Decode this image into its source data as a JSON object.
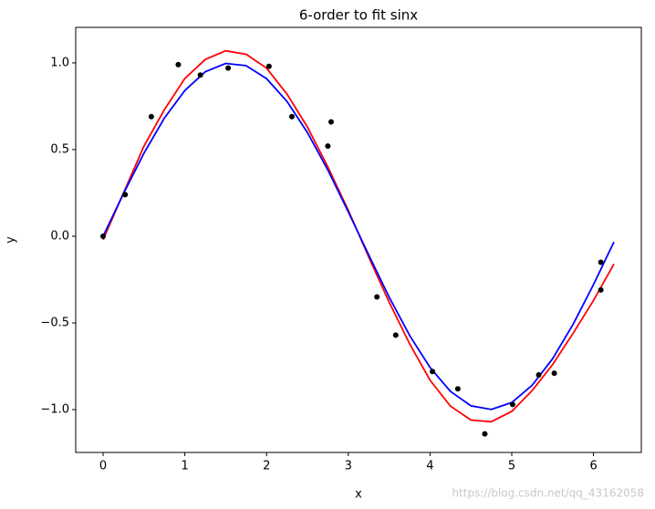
{
  "chart_data": {
    "type": "line",
    "title": "6-order to fit sinx",
    "xlabel": "x",
    "ylabel": "y",
    "xlim": [
      -0.335,
      6.585
    ],
    "ylim": [
      -1.247,
      1.205
    ],
    "xticks": [
      0,
      1,
      2,
      3,
      4,
      5,
      6
    ],
    "yticks": [
      {
        "value": -1.0,
        "label": "−1.0"
      },
      {
        "value": -0.5,
        "label": "−0.5"
      },
      {
        "value": 0.0,
        "label": "0.0"
      },
      {
        "value": 0.5,
        "label": "0.5"
      },
      {
        "value": 1.0,
        "label": "1.0"
      }
    ],
    "series": [
      {
        "type": "scatter",
        "color": "#000000",
        "x": [
          0,
          0.27,
          0.59,
          0.92,
          1.19,
          1.53,
          2.03,
          2.31,
          2.75,
          2.79,
          3.35,
          3.58,
          4.03,
          4.34,
          4.67,
          5.01,
          5.33,
          5.52,
          6.09,
          6.09
        ],
        "values": [
          0,
          0.24,
          0.69,
          0.99,
          0.93,
          0.97,
          0.98,
          0.69,
          0.52,
          0.66,
          -0.35,
          -0.57,
          -0.78,
          -0.88,
          -1.14,
          -0.97,
          -0.8,
          -0.79,
          -0.15,
          -0.31
        ]
      },
      {
        "type": "line",
        "color": "#ff0000",
        "x": [
          0,
          0.25,
          0.5,
          0.75,
          1.0,
          1.25,
          1.5,
          1.75,
          2.0,
          2.25,
          2.5,
          2.75,
          3.0,
          3.25,
          3.5,
          3.75,
          4.0,
          4.25,
          4.5,
          4.75,
          5.0,
          5.25,
          5.5,
          5.75,
          6.0,
          6.25
        ],
        "values": [
          -0.02,
          0.25,
          0.52,
          0.73,
          0.91,
          1.02,
          1.07,
          1.05,
          0.97,
          0.82,
          0.63,
          0.4,
          0.15,
          -0.12,
          -0.38,
          -0.62,
          -0.83,
          -0.98,
          -1.06,
          -1.07,
          -1.01,
          -0.89,
          -0.74,
          -0.56,
          -0.37,
          -0.16
        ]
      },
      {
        "type": "line",
        "color": "#0000ff",
        "x": [
          0,
          0.25,
          0.5,
          0.75,
          1.0,
          1.25,
          1.5,
          1.75,
          2.0,
          2.25,
          2.5,
          2.75,
          3.0,
          3.25,
          3.5,
          3.75,
          4.0,
          4.25,
          4.5,
          4.75,
          5.0,
          5.25,
          5.5,
          5.75,
          6.0,
          6.25
        ],
        "values": [
          0,
          0.247,
          0.479,
          0.682,
          0.841,
          0.949,
          0.997,
          0.984,
          0.909,
          0.778,
          0.598,
          0.382,
          0.141,
          -0.108,
          -0.351,
          -0.572,
          -0.757,
          -0.895,
          -0.978,
          -0.999,
          -0.959,
          -0.859,
          -0.706,
          -0.508,
          -0.279,
          -0.033
        ]
      }
    ]
  },
  "watermark": "https://blog.csdn.net/qq_43162058"
}
